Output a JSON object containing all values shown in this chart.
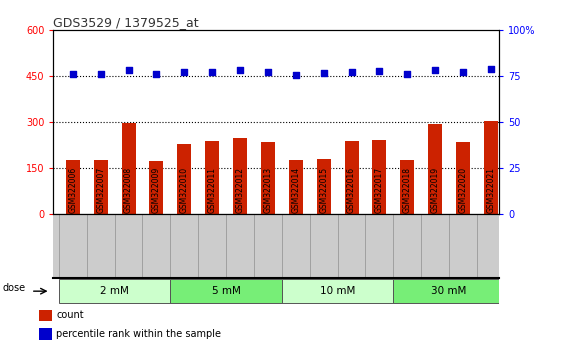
{
  "title": "GDS3529 / 1379525_at",
  "samples": [
    "GSM322006",
    "GSM322007",
    "GSM322008",
    "GSM322009",
    "GSM322010",
    "GSM322011",
    "GSM322012",
    "GSM322013",
    "GSM322014",
    "GSM322015",
    "GSM322016",
    "GSM322017",
    "GSM322018",
    "GSM322019",
    "GSM322020",
    "GSM322021"
  ],
  "bar_values": [
    175,
    178,
    298,
    172,
    230,
    238,
    248,
    235,
    175,
    180,
    238,
    243,
    175,
    295,
    235,
    305
  ],
  "dot_values_pct": [
    76,
    76,
    78.5,
    76,
    77,
    77.5,
    78.5,
    77,
    75.5,
    76.5,
    77,
    78,
    76,
    78.5,
    77,
    79
  ],
  "bar_color": "#cc2200",
  "dot_color": "#0000cc",
  "ylim_left": [
    0,
    600
  ],
  "ylim_right": [
    0,
    100
  ],
  "yticks_left": [
    0,
    150,
    300,
    450,
    600
  ],
  "yticks_right": [
    0,
    25,
    50,
    75,
    100
  ],
  "ytick_labels_right": [
    "0",
    "25",
    "50",
    "75",
    "100%"
  ],
  "hlines": [
    150,
    300,
    450
  ],
  "dose_groups": [
    {
      "label": "2 mM",
      "start": 0,
      "end": 3,
      "color": "#ccffcc"
    },
    {
      "label": "5 mM",
      "start": 4,
      "end": 7,
      "color": "#77ee77"
    },
    {
      "label": "10 mM",
      "start": 8,
      "end": 11,
      "color": "#ccffcc"
    },
    {
      "label": "30 mM",
      "start": 12,
      "end": 15,
      "color": "#77ee77"
    }
  ],
  "legend_items": [
    {
      "label": "count",
      "color": "#cc2200"
    },
    {
      "label": "percentile rank within the sample",
      "color": "#0000cc"
    }
  ],
  "bg_color": "#ffffff",
  "plot_bg": "#ffffff",
  "xtick_bg": "#cccccc",
  "title_color": "#333333",
  "title_fontsize": 9,
  "bar_width": 0.5,
  "xlim": [
    -0.7,
    15.3
  ]
}
